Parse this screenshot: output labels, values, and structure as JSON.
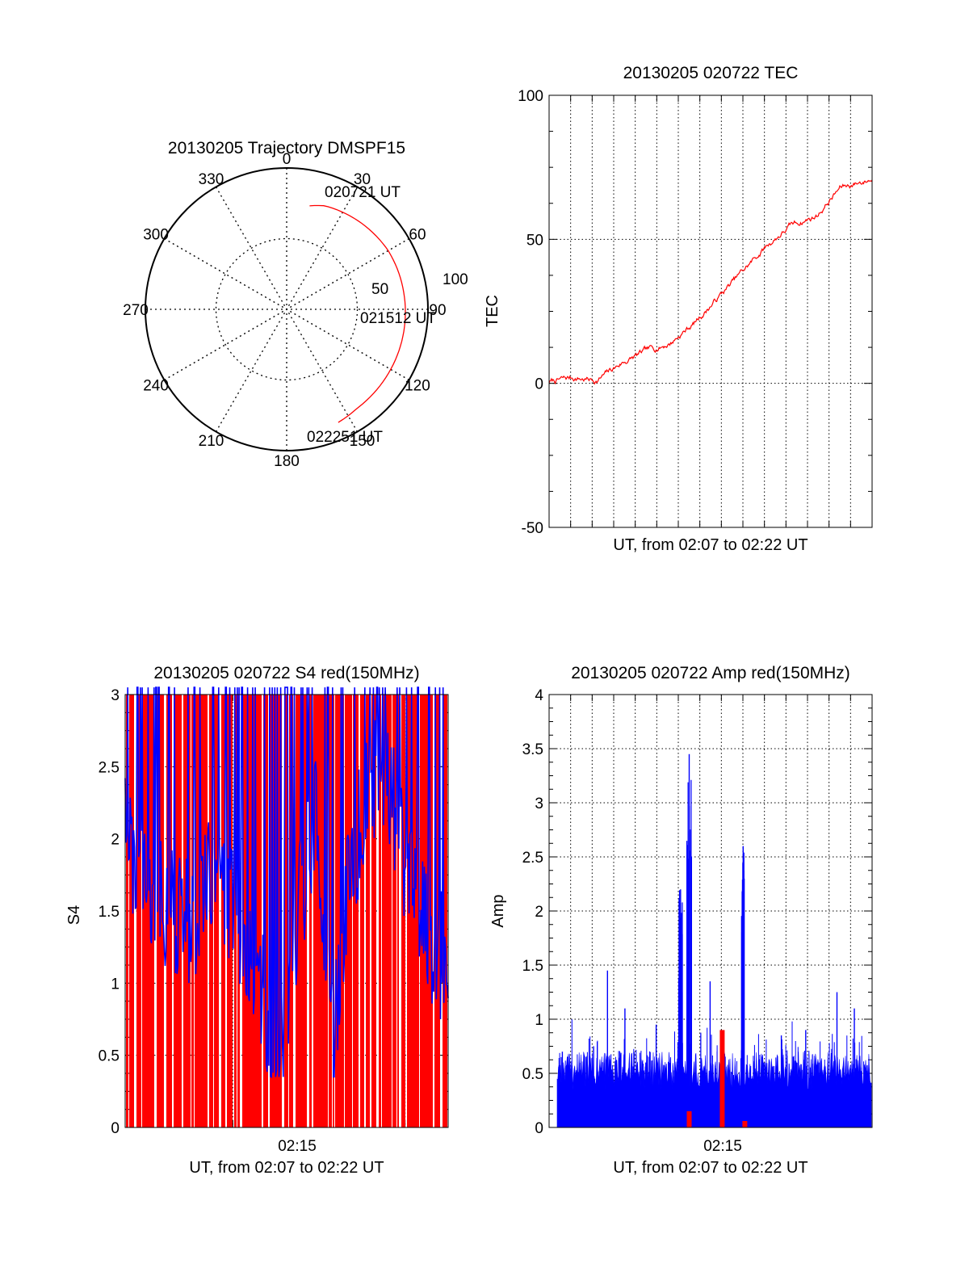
{
  "colors": {
    "red": "#ff0000",
    "blue": "#0000ff",
    "axis": "#000000",
    "grid": "#000000"
  },
  "chart_data": [
    {
      "type": "polar-trajectory",
      "title": "20130205 Trajectory DMSPF15",
      "azimuth_labels": [
        "0",
        "30",
        "60",
        "90",
        "120",
        "150",
        "180",
        "210",
        "240",
        "270",
        "300",
        "330"
      ],
      "radius_labels": [
        "50",
        "100"
      ],
      "radius_range": [
        0,
        100
      ],
      "series": [
        {
          "color": "red",
          "azimuth_deg": [
            12.5,
            20,
            35,
            60,
            90,
            120,
            145,
            155.5
          ],
          "radius": [
            75,
            78,
            80,
            83,
            84,
            85,
            86,
            88
          ]
        }
      ],
      "annotations": [
        {
          "text": "020721 UT",
          "azimuth_deg": 12.5,
          "radius": 75
        },
        {
          "text": "021512 UT",
          "azimuth_deg": 90,
          "radius": 84
        },
        {
          "text": "022251 UT",
          "azimuth_deg": 155.5,
          "radius": 88
        }
      ]
    },
    {
      "type": "line",
      "title": "20130205 020722 TEC",
      "xlabel": "UT, from 02:07 to 02:22 UT",
      "ylabel": "TEC",
      "xlim": [
        "02:07:22",
        "02:22:51"
      ],
      "ylim": [
        -50,
        100
      ],
      "yticks": [
        "100",
        "50",
        "0",
        "-50"
      ],
      "grid": true,
      "series": [
        {
          "color": "red",
          "x": [
            "02:07:22",
            "02:08:30",
            "02:09:40",
            "02:10:50",
            "02:12:00",
            "02:13:10",
            "02:14:20",
            "02:15:30",
            "02:16:40",
            "02:17:50",
            "02:19:00",
            "02:20:10",
            "02:21:20",
            "02:22:51"
          ],
          "y": [
            0.5,
            2,
            1,
            7,
            11,
            14,
            21,
            30,
            39,
            48,
            55,
            58,
            68,
            71
          ]
        }
      ]
    },
    {
      "type": "bar",
      "title": "20130205 020722 S4 red(150MHz)",
      "xlabel": "UT, from 02:07 to 02:22 UT",
      "ylabel": "S4",
      "xticks": [
        "02:15"
      ],
      "yticks": [
        "0",
        "0.5",
        "1",
        "1.5",
        "2",
        "2.5",
        "3"
      ],
      "ylim": [
        0,
        3
      ],
      "grid": true,
      "series": [
        {
          "name": "",
          "color": "red",
          "note_values": "most samples saturate at the top of the axis (>= 3)"
        },
        {
          "name": "",
          "color": "blue",
          "x": [
            "02:07:22",
            "02:08:10",
            "02:09:00",
            "02:09:50",
            "02:10:40",
            "02:11:30",
            "02:12:20",
            "02:13:10",
            "02:14:00",
            "02:14:50",
            "02:15:40",
            "02:16:30",
            "02:17:20",
            "02:18:10",
            "02:19:00",
            "02:19:50",
            "02:20:40",
            "02:21:30",
            "02:22:20"
          ],
          "y": [
            2.0,
            1.7,
            1.6,
            1.5,
            1.4,
            1.8,
            1.6,
            1.2,
            0.9,
            0.5,
            1.5,
            2.2,
            0.6,
            1.8,
            2.3,
            2.5,
            1.9,
            1.5,
            1.2
          ]
        }
      ]
    },
    {
      "type": "bar",
      "title": "20130205 020722 Amp red(150MHz)",
      "xlabel": "UT, from 02:07 to 02:22 UT",
      "ylabel": "Amp",
      "xticks": [
        "02:15"
      ],
      "yticks": [
        "0",
        "0.5",
        "1",
        "1.5",
        "2",
        "2.5",
        "3",
        "3.5",
        "4"
      ],
      "ylim": [
        0,
        4
      ],
      "grid": true,
      "series": [
        {
          "name": "",
          "color": "blue",
          "x": [
            "02:08:00",
            "02:09:30",
            "02:10:10",
            "02:11:00",
            "02:12:30",
            "02:13:40",
            "02:14:05",
            "02:15:05",
            "02:15:30",
            "02:16:40",
            "02:17:40",
            "02:18:30",
            "02:19:40",
            "02:20:20",
            "02:21:10",
            "02:22:00"
          ],
          "y": [
            0.7,
            0.75,
            1.45,
            1.1,
            0.95,
            2.2,
            3.45,
            1.35,
            0.4,
            2.6,
            0.6,
            0.85,
            0.9,
            0.6,
            1.25,
            1.1
          ]
        },
        {
          "name": "",
          "color": "red",
          "x": [
            "02:14:05",
            "02:15:40",
            "02:16:45"
          ],
          "y": [
            0.15,
            0.9,
            0.06
          ]
        }
      ]
    }
  ]
}
